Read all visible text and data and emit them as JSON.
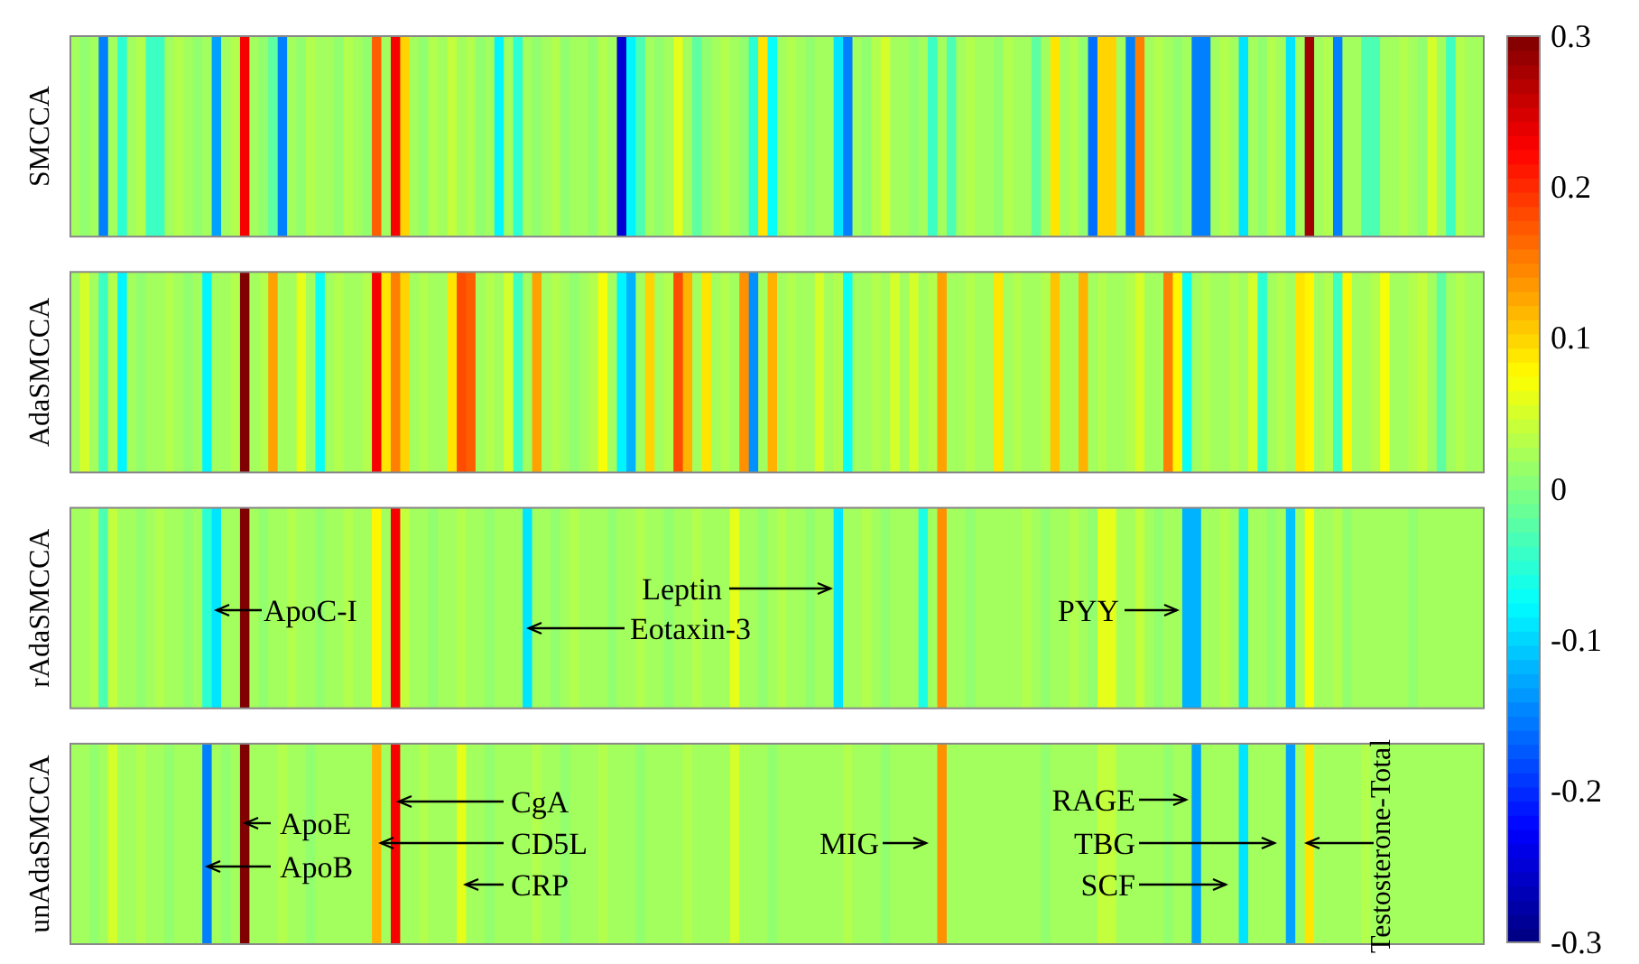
{
  "chart_data": {
    "type": "heatmap",
    "categories": [
      null,
      null,
      null,
      null,
      null,
      null,
      null,
      null,
      null,
      null,
      null,
      null,
      null,
      null,
      null,
      null,
      null,
      null,
      null,
      null,
      null,
      null,
      null,
      null,
      null,
      null,
      null,
      null,
      null,
      null,
      null,
      null,
      null,
      null,
      null,
      null,
      null,
      null,
      null,
      null,
      null,
      null,
      null,
      null,
      null,
      null,
      null,
      null,
      null,
      null,
      null,
      null,
      null,
      null,
      null,
      null,
      null,
      null,
      null,
      null,
      null,
      null,
      null,
      null,
      null,
      null,
      null,
      null,
      null,
      null,
      null,
      null,
      null,
      null,
      null,
      null,
      null,
      null,
      null,
      null,
      null,
      null,
      null,
      null,
      null,
      null,
      null,
      null,
      null,
      null,
      null,
      null,
      null,
      null,
      null,
      null,
      null,
      null,
      null,
      null,
      null,
      null,
      null,
      null,
      null,
      null,
      null,
      null,
      null,
      null,
      null,
      null,
      null,
      null,
      null,
      null,
      null,
      null,
      null,
      null,
      null,
      null,
      null,
      null,
      null,
      null,
      null,
      null,
      null,
      null,
      null,
      null,
      null,
      null,
      null,
      null,
      null,
      null,
      null,
      null,
      null,
      null,
      null,
      null,
      null,
      null,
      null,
      null,
      null,
      null
    ],
    "y_categories": [
      "SMCCA",
      "AdaSMCCA",
      "rAdaSMCCA",
      "unAdaSMCCA"
    ],
    "cells": [
      [
        0.02,
        0.01,
        0.02,
        -0.15,
        0.02,
        -0.05,
        0.02,
        0.03,
        -0.04,
        -0.04,
        0.02,
        0.03,
        0.02,
        0.01,
        0.02,
        -0.13,
        0.02,
        0.03,
        0.23,
        0.02,
        0.01,
        -0.02,
        -0.15,
        0.02,
        0.01,
        0.03,
        0.02,
        0.02,
        0.01,
        0.03,
        0.02,
        0.01,
        0.17,
        0.02,
        0.23,
        0.1,
        0.02,
        0.01,
        0.03,
        0.02,
        0.04,
        0.02,
        0.03,
        0.01,
        0.02,
        -0.08,
        0.02,
        -0.05,
        0.02,
        0.01,
        0.02,
        0.03,
        0.01,
        0.02,
        0.02,
        0.01,
        0.03,
        0.02,
        -0.25,
        -0.08,
        -0.03,
        0.02,
        0.01,
        0.02,
        0.06,
        0.02,
        -0.02,
        0.01,
        0.02,
        0.03,
        0.02,
        0.01,
        -0.05,
        0.09,
        -0.07,
        0.02,
        0.03,
        0.02,
        0.01,
        0.02,
        0.02,
        -0.09,
        -0.15,
        0.02,
        0.01,
        0.03,
        0.05,
        0.02,
        0.02,
        0.01,
        0.02,
        -0.04,
        0.02,
        -0.03,
        0.02,
        0.03,
        0.02,
        0.02,
        0.01,
        0.03,
        0.02,
        0.02,
        -0.02,
        0.02,
        0.09,
        0.02,
        0.03,
        0.01,
        -0.16,
        0.1,
        0.1,
        0.02,
        -0.15,
        0.15,
        0.02,
        0.03,
        0.02,
        0.01,
        0.02,
        -0.15,
        -0.15,
        0.02,
        0.03,
        0.02,
        -0.09,
        0.02,
        0.01,
        0.03,
        0.02,
        -0.09,
        0.02,
        0.28,
        0.02,
        0.03,
        -0.15,
        0.02,
        0.02,
        -0.03,
        -0.03,
        0.02,
        0.02,
        0.03,
        0.02,
        0.01,
        0.05,
        0.02,
        -0.04,
        0.03,
        0.02,
        0.02
      ],
      [
        0.02,
        0.05,
        0.02,
        -0.04,
        0.03,
        -0.08,
        0.02,
        0.01,
        0.02,
        0.02,
        0.03,
        0.02,
        0.01,
        0.02,
        -0.08,
        0.02,
        0.02,
        0.03,
        0.3,
        0.02,
        0.03,
        0.13,
        0.02,
        0.02,
        0.06,
        0.02,
        -0.07,
        0.02,
        0.03,
        0.02,
        0.02,
        0.03,
        0.23,
        0.09,
        0.15,
        0.1,
        0.02,
        0.03,
        0.02,
        0.02,
        0.09,
        0.18,
        0.17,
        0.02,
        0.03,
        0.02,
        0.05,
        -0.04,
        0.02,
        0.13,
        0.02,
        0.03,
        0.02,
        0.01,
        0.02,
        0.03,
        0.07,
        0.02,
        -0.08,
        -0.12,
        0.02,
        0.1,
        0.02,
        0.03,
        0.18,
        0.12,
        0.02,
        0.09,
        0.02,
        0.03,
        0.02,
        0.14,
        -0.14,
        0.02,
        0.12,
        0.02,
        0.03,
        0.02,
        0.02,
        0.05,
        0.02,
        0.03,
        -0.07,
        0.02,
        0.02,
        0.03,
        0.02,
        0.05,
        0.02,
        0.05,
        0.02,
        0.03,
        0.13,
        0.02,
        0.02,
        0.03,
        0.02,
        0.02,
        0.09,
        0.02,
        0.03,
        0.02,
        0.02,
        0.03,
        0.11,
        0.02,
        0.02,
        0.12,
        0.02,
        0.03,
        0.02,
        0.02,
        0.03,
        0.05,
        0.02,
        0.02,
        0.15,
        0.08,
        -0.07,
        0.02,
        0.03,
        0.02,
        0.02,
        0.03,
        0.02,
        0.05,
        -0.05,
        0.02,
        0.03,
        0.02,
        0.09,
        0.08,
        0.02,
        0.03,
        -0.04,
        0.08,
        0.02,
        0.02,
        0.03,
        0.07,
        0.02,
        0.02,
        0.03,
        0.04,
        0.02,
        -0.02,
        0.02,
        0.03,
        0.02,
        0.02
      ],
      [
        0.02,
        0.02,
        0.03,
        -0.03,
        0.04,
        0.02,
        0.02,
        0.01,
        0.02,
        0.03,
        0.02,
        0.02,
        0.01,
        0.02,
        -0.05,
        -0.09,
        0.02,
        0.02,
        0.3,
        0.02,
        0.01,
        0.02,
        0.02,
        0.03,
        0.02,
        0.02,
        0.01,
        0.02,
        0.02,
        0.03,
        0.02,
        0.02,
        0.08,
        0.02,
        0.23,
        0.04,
        0.02,
        0.02,
        0.01,
        0.02,
        0.02,
        0.03,
        0.02,
        0.02,
        0.01,
        0.02,
        0.02,
        0.02,
        -0.09,
        0.02,
        0.02,
        0.01,
        0.02,
        0.03,
        0.02,
        0.02,
        0.02,
        0.01,
        0.02,
        0.02,
        0.03,
        0.02,
        0.02,
        0.01,
        0.02,
        0.02,
        0.03,
        0.02,
        0.02,
        0.02,
        0.06,
        0.02,
        0.02,
        0.01,
        0.02,
        0.03,
        0.02,
        0.02,
        0.01,
        0.02,
        0.02,
        -0.09,
        0.02,
        0.02,
        0.03,
        0.02,
        0.01,
        0.02,
        0.02,
        0.02,
        -0.06,
        0.02,
        0.14,
        0.02,
        0.02,
        0.01,
        0.02,
        0.02,
        0.02,
        0.02,
        0.02,
        0.03,
        0.02,
        0.01,
        0.02,
        0.02,
        0.03,
        0.02,
        0.01,
        0.06,
        0.06,
        0.02,
        0.02,
        0.04,
        0.02,
        0.01,
        0.02,
        0.02,
        -0.12,
        -0.12,
        0.02,
        0.02,
        0.03,
        0.02,
        -0.09,
        0.02,
        0.02,
        0.01,
        0.02,
        -0.11,
        0.02,
        0.07,
        0.02,
        0.02,
        0.03,
        0.01,
        0.02,
        0.02,
        0.02,
        0.02,
        0.02,
        0.02,
        0.01,
        0.02,
        0.02,
        0.02,
        0.02,
        0.02,
        0.02,
        0.02
      ],
      [
        0.02,
        0.02,
        0.01,
        0.02,
        0.05,
        0.02,
        0.02,
        0.03,
        0.02,
        0.02,
        0.01,
        0.02,
        0.02,
        0.02,
        -0.15,
        0.02,
        0.01,
        0.02,
        0.3,
        0.02,
        0.02,
        0.02,
        0.03,
        0.02,
        0.02,
        0.01,
        0.02,
        0.02,
        0.02,
        0.02,
        0.02,
        0.02,
        0.12,
        0.02,
        0.23,
        0.02,
        0.02,
        0.03,
        0.02,
        0.02,
        0.02,
        0.06,
        0.02,
        0.02,
        0.01,
        0.02,
        0.02,
        0.02,
        0.02,
        0.03,
        0.02,
        0.02,
        0.01,
        0.02,
        0.02,
        0.02,
        0.03,
        0.02,
        0.02,
        0.02,
        0.01,
        0.02,
        0.02,
        0.02,
        0.02,
        0.03,
        0.02,
        0.02,
        0.02,
        0.02,
        0.05,
        0.02,
        0.02,
        0.02,
        0.01,
        0.02,
        0.02,
        0.02,
        0.02,
        0.02,
        0.02,
        0.02,
        0.03,
        0.02,
        0.02,
        0.02,
        0.01,
        0.02,
        0.02,
        0.02,
        0.02,
        0.02,
        0.14,
        0.02,
        0.02,
        0.02,
        0.02,
        0.02,
        0.02,
        0.02,
        0.02,
        0.02,
        0.02,
        0.01,
        0.02,
        0.02,
        0.02,
        0.02,
        0.02,
        0.04,
        0.04,
        0.02,
        0.02,
        0.02,
        0.02,
        0.02,
        0.01,
        0.02,
        0.02,
        -0.13,
        0.02,
        0.02,
        0.02,
        0.02,
        -0.09,
        0.02,
        0.02,
        0.02,
        0.02,
        -0.13,
        0.02,
        0.09,
        0.02,
        0.02,
        0.02,
        0.02,
        0.02,
        0.03,
        0.02,
        0.02,
        0.02,
        0.02,
        0.02,
        0.02,
        0.02,
        0.02,
        0.02,
        0.02,
        0.02,
        0.02
      ]
    ],
    "clim": [
      -0.3,
      0.3
    ],
    "cticks": [
      -0.3,
      -0.2,
      -0.1,
      0,
      0.1,
      0.2,
      0.3
    ],
    "annotations": [
      "ApoC-I",
      "Leptin",
      "Eotaxin-3",
      "PYY",
      "ApoE",
      "ApoB",
      "CgA",
      "CD5L",
      "CRP",
      "MIG",
      "RAGE",
      "TBG",
      "SCF",
      "Testosterone-Total"
    ]
  }
}
